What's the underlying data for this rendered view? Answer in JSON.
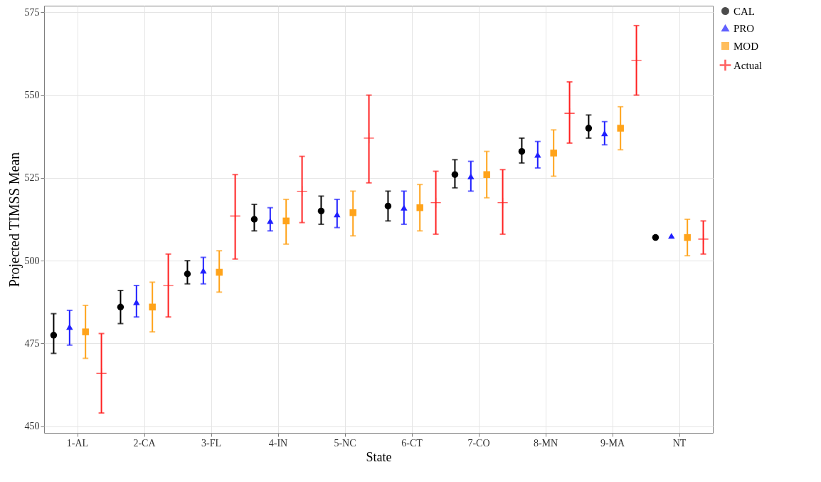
{
  "chart_data": {
    "type": "scatter",
    "xlabel": "State",
    "ylabel": "Projected TIMSS Mean",
    "categories": [
      "1-AL",
      "2-CA",
      "3-FL",
      "4-IN",
      "5-NC",
      "6-CT",
      "7-CO",
      "8-MN",
      "9-MA",
      "NT"
    ],
    "ylim": [
      448,
      577
    ],
    "yticks": [
      450,
      475,
      500,
      525,
      550,
      575
    ],
    "grid": true,
    "legend": "right",
    "series": [
      {
        "name": "CAL",
        "color": "#000000",
        "marker": "circle",
        "values": [
          477.5,
          486,
          496,
          512.5,
          515,
          516.5,
          526,
          533,
          540,
          507
        ],
        "errors": [
          [
            472,
            484
          ],
          [
            481,
            491
          ],
          [
            493,
            500
          ],
          [
            509,
            517
          ],
          [
            511,
            519.5
          ],
          [
            512,
            521
          ],
          [
            522,
            530.5
          ],
          [
            529.5,
            537
          ],
          [
            537,
            544
          ],
          null
        ]
      },
      {
        "name": "PRO",
        "color": "#1f1fff",
        "marker": "triangle",
        "values": [
          480,
          487.5,
          497,
          512,
          514,
          516,
          525.5,
          532,
          538.5,
          507.5
        ],
        "errors": [
          [
            474.5,
            485
          ],
          [
            483,
            492.5
          ],
          [
            493,
            501
          ],
          [
            509,
            516
          ],
          [
            510,
            518.5
          ],
          [
            511,
            521
          ],
          [
            521,
            530
          ],
          [
            528,
            536
          ],
          [
            535,
            542
          ],
          null
        ]
      },
      {
        "name": "MOD",
        "color": "#ffa31a",
        "marker": "square",
        "values": [
          478.5,
          486,
          496.5,
          512,
          514.5,
          516,
          526,
          532.5,
          540,
          507
        ],
        "errors": [
          [
            470.5,
            486.5
          ],
          [
            478.5,
            493.5
          ],
          [
            490.5,
            503
          ],
          [
            505,
            518.5
          ],
          [
            507.5,
            521
          ],
          [
            509,
            523
          ],
          [
            519,
            533
          ],
          [
            525.5,
            539.5
          ],
          [
            533.5,
            546.5
          ],
          [
            501.5,
            512.5
          ]
        ]
      },
      {
        "name": "Actual",
        "color": "#ff2020",
        "marker": "cross",
        "values": [
          466,
          492.5,
          513.5,
          521,
          537,
          517.5,
          517.5,
          544.5,
          560.5,
          506.5
        ],
        "errors": [
          [
            454,
            478
          ],
          [
            483,
            502
          ],
          [
            500.5,
            526
          ],
          [
            511.5,
            531.5
          ],
          [
            523.5,
            550
          ],
          [
            508,
            527
          ],
          [
            508,
            527.5
          ],
          [
            535.5,
            554
          ],
          [
            550,
            571
          ],
          [
            502,
            512
          ]
        ]
      }
    ]
  }
}
